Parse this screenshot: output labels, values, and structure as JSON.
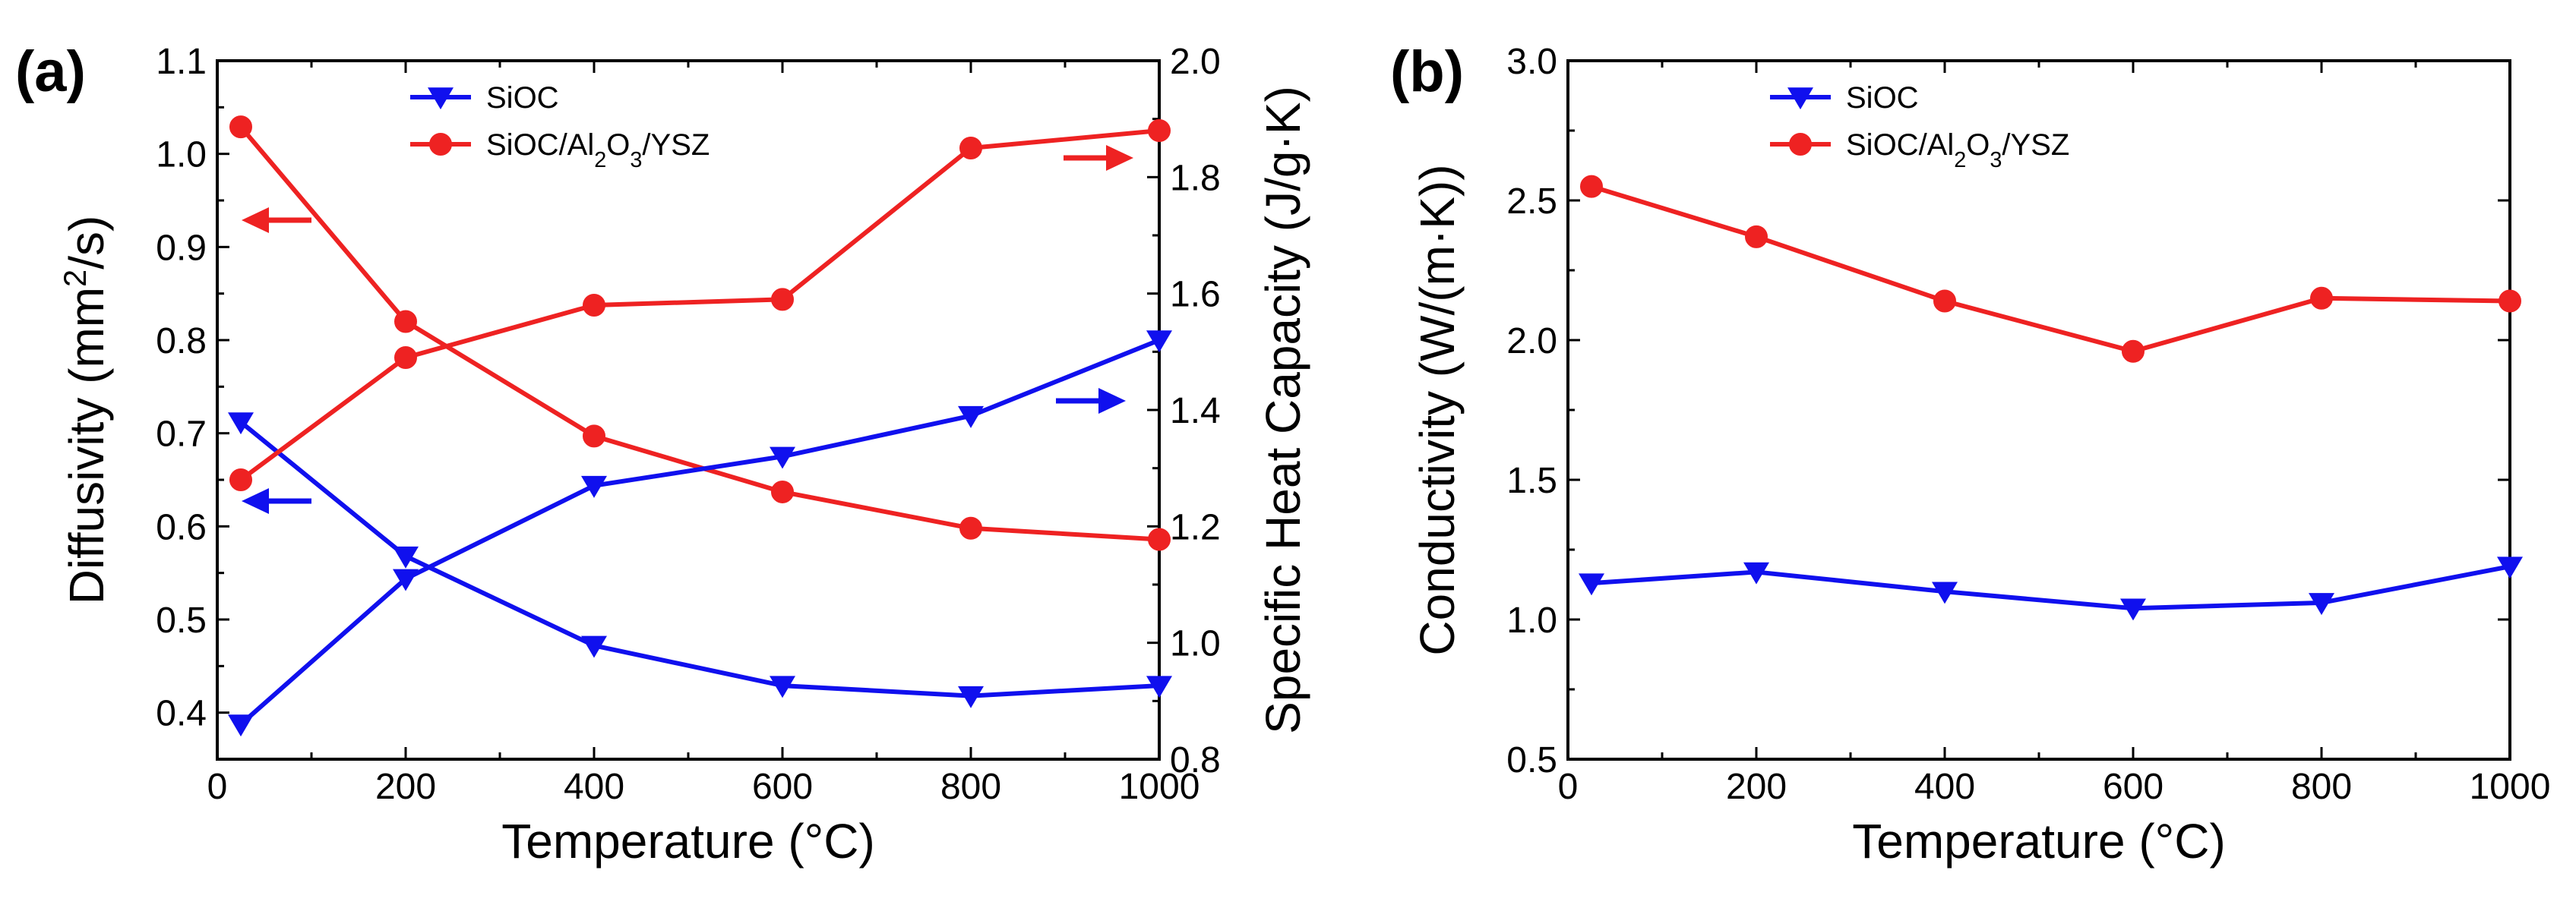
{
  "panels": {
    "a": {
      "label": "(a)"
    },
    "b": {
      "label": "(b)"
    }
  },
  "legend": {
    "entries": [
      {
        "name": "SiOC",
        "color": "#1010ee",
        "marker": "triangle-down"
      },
      {
        "name": "SiOC/Al2O3/YSZ",
        "color": "#ee2222",
        "marker": "circle"
      }
    ]
  },
  "chart_data": [
    {
      "panel": "a",
      "type": "line",
      "xlabel": "Temperature (°C)",
      "ylabel": "Diffusivity (mm²/s)",
      "y2label": "Specific Heat Capacity (J/g·K)",
      "xlim": [
        0,
        1000
      ],
      "ylim": [
        0.35,
        1.1
      ],
      "y2lim": [
        0.8,
        2.0
      ],
      "xticks": [
        "0",
        "200",
        "400",
        "600",
        "800",
        "1000"
      ],
      "yticks": [
        "0.4",
        "0.5",
        "0.6",
        "0.7",
        "0.8",
        "0.9",
        "1.0",
        "1.1"
      ],
      "y2ticks": [
        "0.8",
        "1.0",
        "1.2",
        "1.4",
        "1.6",
        "1.8",
        "2.0"
      ],
      "x": [
        25,
        200,
        400,
        600,
        800,
        1000
      ],
      "series": [
        {
          "name": "SiOC",
          "axis": "left",
          "values": [
            0.712,
            0.568,
            0.472,
            0.429,
            0.418,
            0.429
          ]
        },
        {
          "name": "SiOC/Al2O3/YSZ",
          "axis": "left",
          "values": [
            1.029,
            0.82,
            0.697,
            0.637,
            0.598,
            0.586
          ]
        },
        {
          "name": "SiOC",
          "axis": "right",
          "values": [
            0.86,
            1.11,
            1.27,
            1.32,
            1.39,
            1.52
          ]
        },
        {
          "name": "SiOC/Al2O3/YSZ",
          "axis": "right",
          "values": [
            1.28,
            1.49,
            1.58,
            1.59,
            1.85,
            1.88
          ]
        }
      ],
      "axis_arrows": [
        {
          "series": "SiOC/Al2O3/YSZ",
          "direction": "left"
        },
        {
          "series": "SiOC",
          "direction": "left"
        },
        {
          "series": "SiOC/Al2O3/YSZ",
          "direction": "right"
        },
        {
          "series": "SiOC",
          "direction": "right"
        }
      ],
      "legend_position": "top-center",
      "grid": false
    },
    {
      "panel": "b",
      "type": "line",
      "xlabel": "Temperature (°C)",
      "ylabel": "Conductivity (W/(m·K))",
      "xlim": [
        0,
        1000
      ],
      "ylim": [
        0.5,
        3.0
      ],
      "xticks": [
        "0",
        "200",
        "400",
        "600",
        "800",
        "1000"
      ],
      "yticks": [
        "0.5",
        "1.0",
        "1.5",
        "2.0",
        "2.5",
        "3.0"
      ],
      "x": [
        25,
        200,
        400,
        600,
        800,
        1000
      ],
      "series": [
        {
          "name": "SiOC",
          "values": [
            1.13,
            1.17,
            1.1,
            1.04,
            1.06,
            1.19
          ]
        },
        {
          "name": "SiOC/Al2O3/YSZ",
          "values": [
            2.55,
            2.37,
            2.14,
            1.96,
            2.15,
            2.14
          ]
        }
      ],
      "legend_position": "top-center",
      "grid": false
    }
  ]
}
